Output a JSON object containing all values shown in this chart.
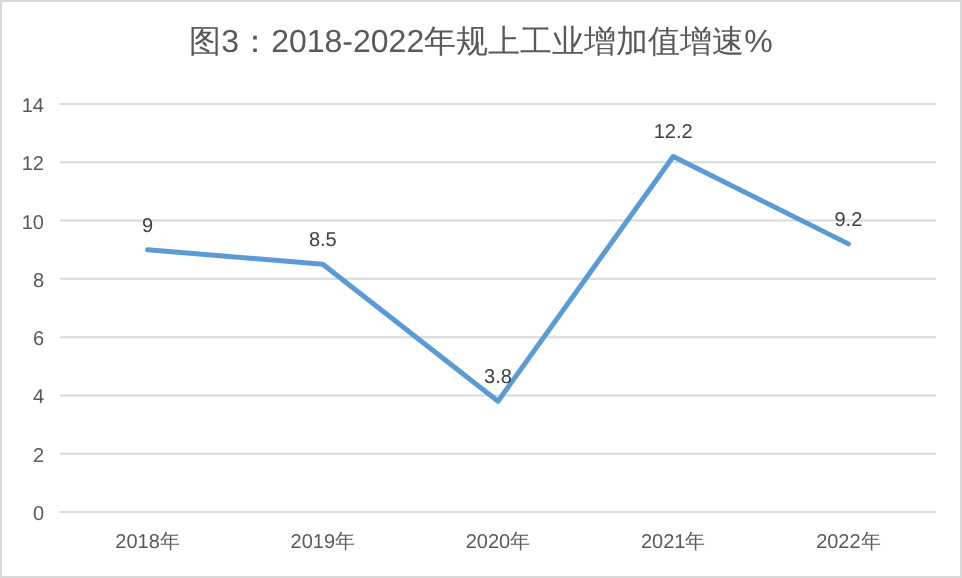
{
  "chart_data": {
    "type": "line",
    "title": "图3：2018-2022年规上工业增加值增速%",
    "categories": [
      "2018年",
      "2019年",
      "2020年",
      "2021年",
      "2022年"
    ],
    "values": [
      9,
      8.5,
      3.8,
      12.2,
      9.2
    ],
    "color": "#5b9bd5",
    "ylim": [
      0,
      14
    ],
    "yticks": [
      0,
      2,
      4,
      6,
      8,
      10,
      12,
      14
    ],
    "grid": "y",
    "data_labels": true
  }
}
